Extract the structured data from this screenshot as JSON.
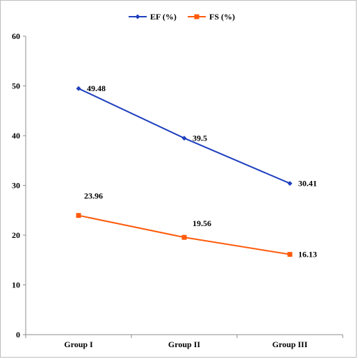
{
  "chart_data": {
    "type": "line",
    "categories": [
      "Group I",
      "Group II",
      "Group III"
    ],
    "series": [
      {
        "name": "EF (%)",
        "values": [
          49.48,
          39.5,
          30.41
        ],
        "color": "#1f3fbf",
        "marker": "diamond"
      },
      {
        "name": "FS (%)",
        "values": [
          23.96,
          19.56,
          16.13
        ],
        "color": "#ff5a0a",
        "marker": "square"
      }
    ],
    "ylim": [
      0,
      60
    ],
    "yticks": [
      "0",
      "10",
      "20",
      "30",
      "40",
      "50",
      "60"
    ],
    "legend_position": "top-center",
    "grid": false,
    "data_labels": [
      [
        "49.48",
        "39.5",
        "30.41"
      ],
      [
        "23.96",
        "19.56",
        "16.13"
      ]
    ]
  }
}
